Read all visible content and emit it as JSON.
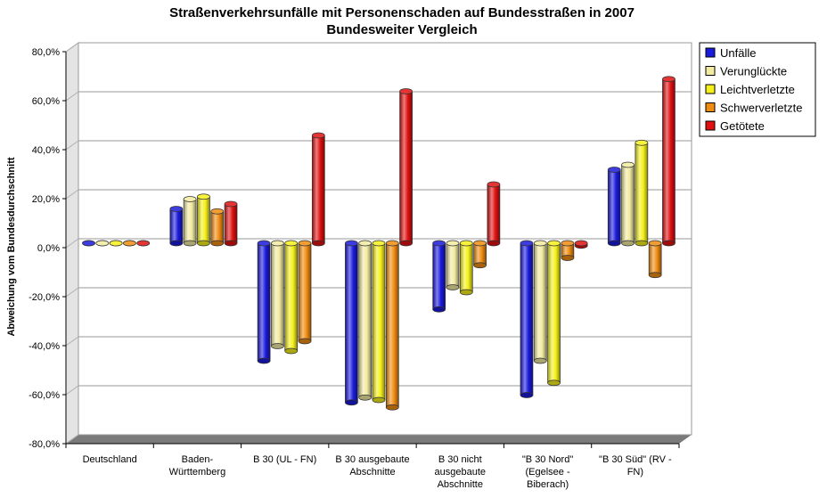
{
  "chart_data": {
    "type": "bar",
    "title": "Straßenverkehrsunfälle mit Personenschaden auf Bundesstraßen in 2007",
    "subtitle": "Bundesweiter Vergleich",
    "xlabel": "",
    "ylabel": "Abweichung vom Bundesdurchschnitt",
    "ylim": [
      -80,
      80
    ],
    "yticks": [
      "80,0%",
      "60,0%",
      "40,0%",
      "20,0%",
      "0,0%",
      "-20,0%",
      "-40,0%",
      "-60,0%",
      "-80,0%"
    ],
    "grid": true,
    "legend_position": "right",
    "categories": [
      "Deutschland",
      "Baden-\nWürttemberg",
      "B 30 (UL - FN)",
      "B 30 ausgebaute\nAbschnitte",
      "B 30 nicht\nausgebaute\nAbschnitte",
      "\"B 30 Nord\"\n(Egelsee -\nBiberach)",
      "\"B 30 Süd\" (RV -\nFN)"
    ],
    "series": [
      {
        "name": "Unfälle",
        "color": "#1a1adc",
        "values": [
          0,
          14,
          -48,
          -65,
          -27,
          -62,
          30
        ]
      },
      {
        "name": "Verunglückte",
        "color": "#f2eba0",
        "values": [
          0,
          18,
          -42,
          -63,
          -18,
          -48,
          32
        ]
      },
      {
        "name": "Leichtverletzte",
        "color": "#f5f01a",
        "values": [
          0,
          19,
          -44,
          -64,
          -20,
          -57,
          41
        ]
      },
      {
        "name": "Schwerverletzte",
        "color": "#f08c10",
        "values": [
          0,
          13,
          -40,
          -67,
          -9,
          -6,
          -13
        ]
      },
      {
        "name": "Getötete",
        "color": "#e01010",
        "values": [
          0,
          16,
          44,
          62,
          24,
          -1,
          67
        ]
      }
    ]
  }
}
